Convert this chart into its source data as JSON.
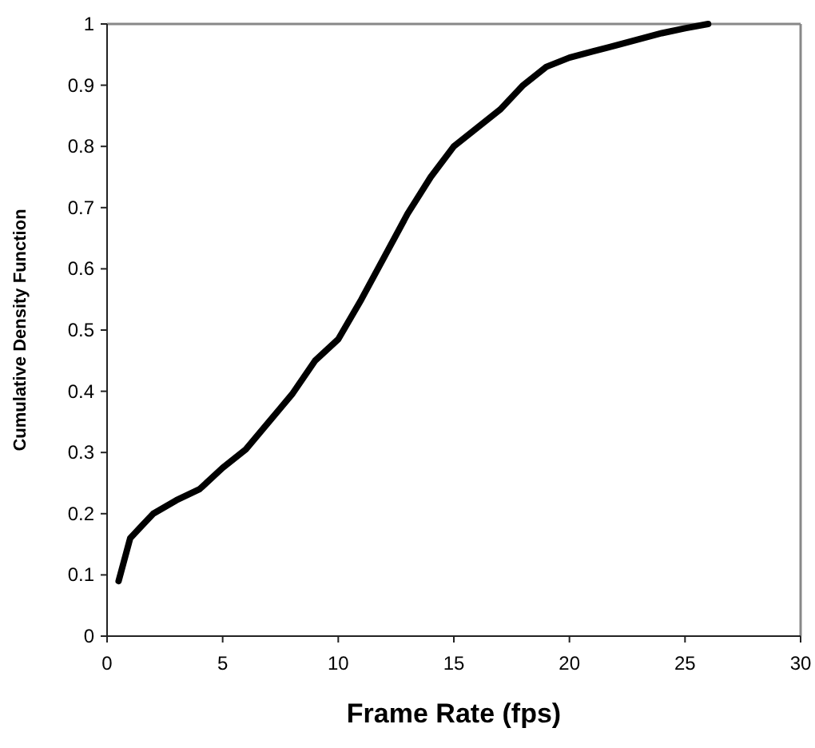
{
  "chart_data": {
    "type": "line",
    "xlabel": "Frame Rate (fps)",
    "ylabel": "Cumulative Density Function",
    "xlim": [
      0,
      30
    ],
    "xticks": [
      0,
      5,
      10,
      15,
      20,
      25,
      30
    ],
    "ylim": [
      0,
      1
    ],
    "yticks": [
      0,
      0.1,
      0.2,
      0.3,
      0.4,
      0.5,
      0.6,
      0.7,
      0.8,
      0.9,
      1
    ],
    "grid": false,
    "marker": "none",
    "line_style": "solid",
    "series": [
      {
        "color": "#000000",
        "x": [
          0.5,
          1,
          1.5,
          2,
          3,
          4,
          5,
          6,
          7,
          8,
          9,
          10,
          11,
          12,
          13,
          14,
          15,
          16,
          17,
          18,
          19,
          20,
          21,
          22,
          23,
          24,
          25,
          26
        ],
        "values": [
          0.09,
          0.16,
          0.18,
          0.2,
          0.222,
          0.24,
          0.275,
          0.305,
          0.35,
          0.395,
          0.45,
          0.485,
          0.55,
          0.62,
          0.69,
          0.75,
          0.8,
          0.83,
          0.86,
          0.9,
          0.93,
          0.945,
          0.955,
          0.965,
          0.975,
          0.985,
          0.993,
          1.0
        ]
      }
    ]
  }
}
